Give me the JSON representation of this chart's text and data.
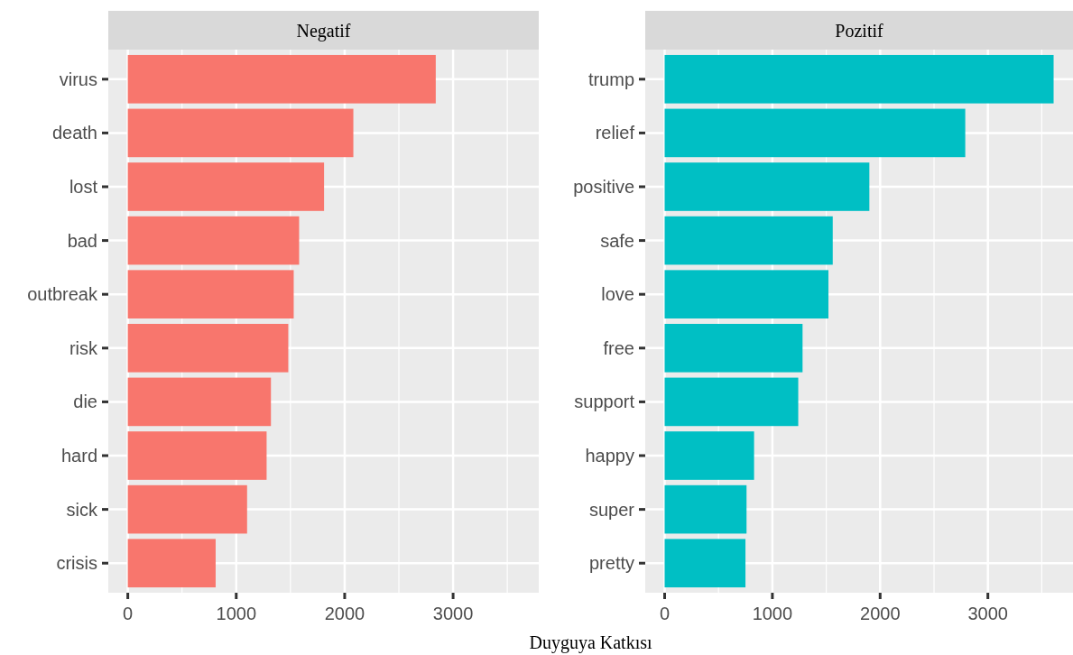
{
  "chart_data": [
    {
      "type": "bar",
      "orientation": "horizontal",
      "title": "Negatif",
      "xlabel": "Duyguya Katkısı",
      "categories": [
        "virus",
        "death",
        "lost",
        "bad",
        "outbreak",
        "risk",
        "die",
        "hard",
        "sick",
        "crisis"
      ],
      "values": [
        2840,
        2080,
        1810,
        1580,
        1530,
        1480,
        1320,
        1280,
        1100,
        810
      ],
      "color": "#f8766d",
      "xlim": [
        -180,
        3790
      ],
      "xticks": [
        0,
        1000,
        2000,
        3000
      ],
      "grid": true
    },
    {
      "type": "bar",
      "orientation": "horizontal",
      "title": "Pozitif",
      "categories": [
        "trump",
        "relief",
        "positive",
        "safe",
        "love",
        "free",
        "support",
        "happy",
        "super",
        "pretty"
      ],
      "values": [
        3610,
        2790,
        1900,
        1560,
        1520,
        1280,
        1240,
        830,
        760,
        750
      ],
      "color": "#00bfc4",
      "xlim": [
        -180,
        3790
      ],
      "xticks": [
        0,
        1000,
        2000,
        3000
      ],
      "grid": true
    }
  ]
}
